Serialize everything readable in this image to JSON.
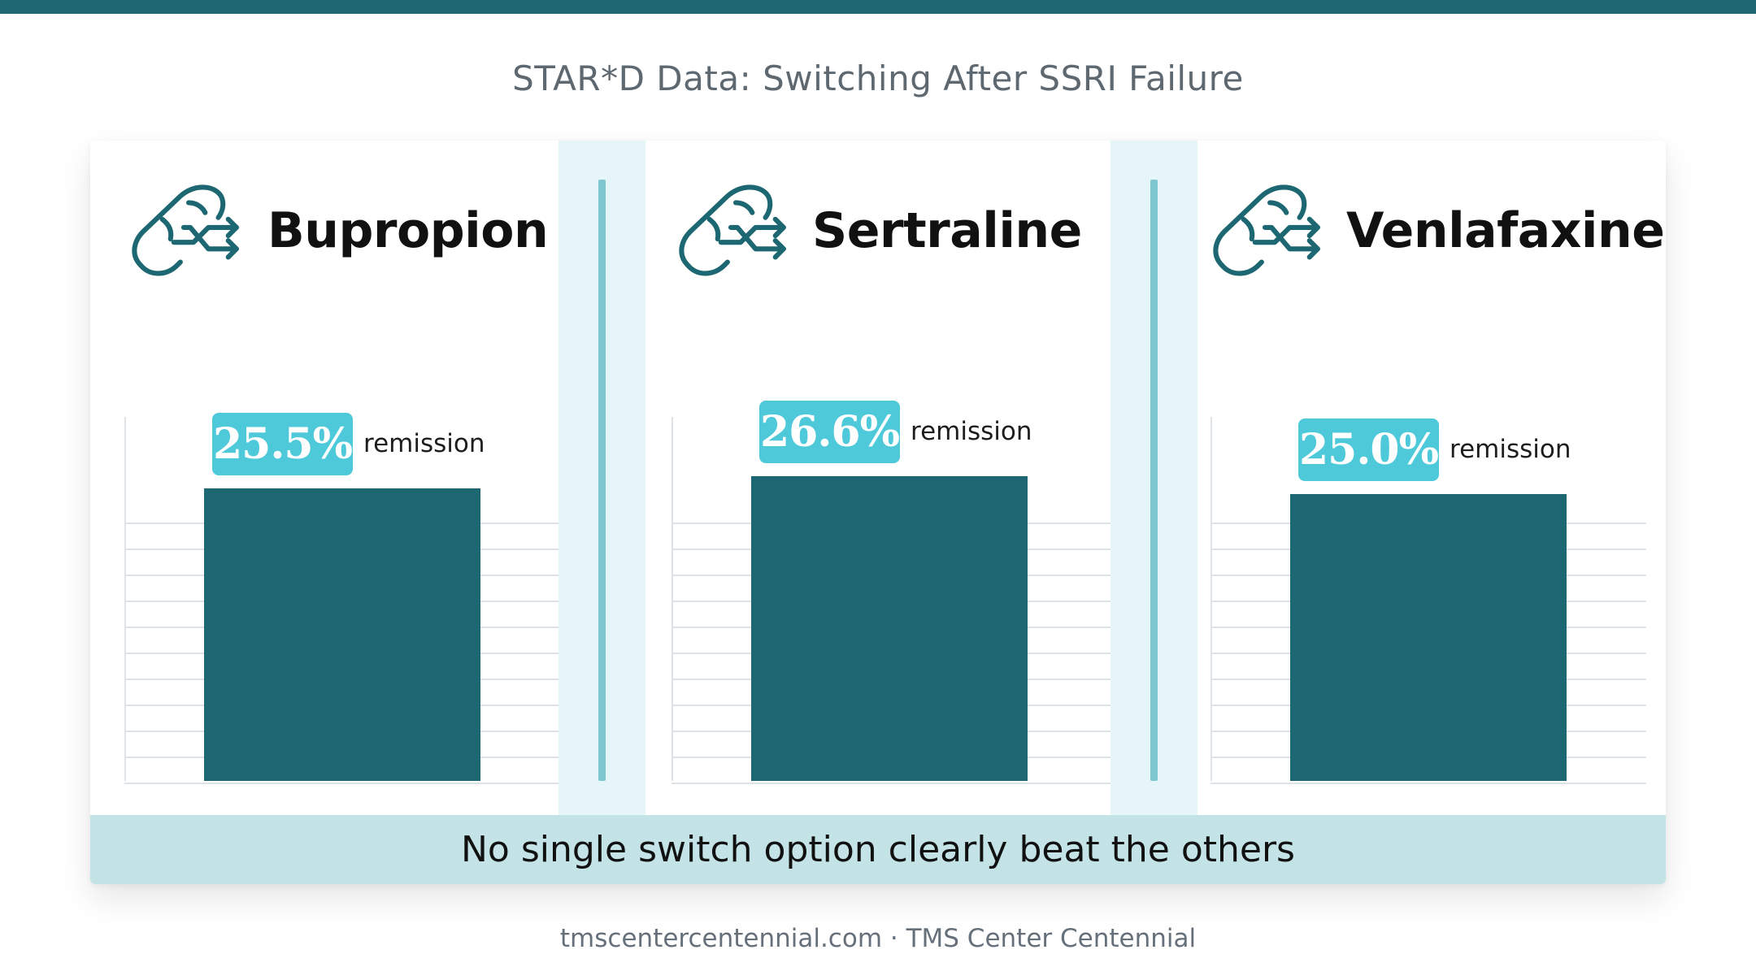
{
  "page": {
    "title": "STAR*D Data: Switching After SSRI Failure",
    "footer_note": "No single switch option clearly beat the others",
    "source": "tmscentercentennial.com · TMS Center Centennial"
  },
  "colors": {
    "top_bar": "#1c6772",
    "bar": "#1c6772",
    "badge": "#4ec9d9",
    "icon": "#1c6772",
    "divider": "#7ec7cf",
    "gutter": "#e6f5f7",
    "footer_band": "#c3e3e7"
  },
  "chart_data": [
    {
      "type": "bar",
      "title": "Bupropion",
      "icon": "pill-switch-icon",
      "categories": [
        "Bupropion"
      ],
      "values": [
        25.5
      ],
      "value_label": "25.5%",
      "unit_label": "remission",
      "ylim": [
        0,
        30
      ],
      "grid": true
    },
    {
      "type": "bar",
      "title": "Sertraline",
      "icon": "pill-switch-icon",
      "categories": [
        "Sertraline"
      ],
      "values": [
        26.6
      ],
      "value_label": "26.6%",
      "unit_label": "remission",
      "ylim": [
        0,
        30
      ],
      "grid": true
    },
    {
      "type": "bar",
      "title": "Venlafaxine",
      "icon": "pill-switch-icon",
      "categories": [
        "Venlafaxine"
      ],
      "values": [
        25.0
      ],
      "value_label": "25.0%",
      "unit_label": "remission",
      "ylim": [
        0,
        30
      ],
      "grid": true
    }
  ]
}
